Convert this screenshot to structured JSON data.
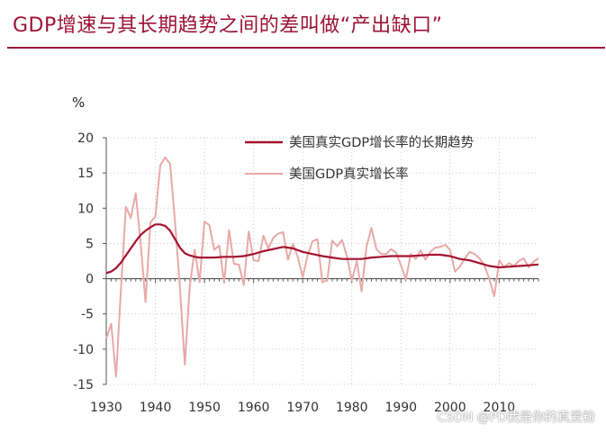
{
  "header": {
    "title": "GDP增速与其长期趋势之间的差叫做“产出缺口”"
  },
  "watermark": "CSDN @PD我是你的真爱粉",
  "chart_data": {
    "type": "line",
    "title": "GDP增速与其长期趋势之间的差叫做“产出缺口”",
    "ylabel": "%",
    "xlabel": "",
    "xlim": [
      1930,
      2018
    ],
    "ylim": [
      -15,
      20
    ],
    "xticks": [
      1930,
      1940,
      1950,
      1960,
      1970,
      1980,
      1990,
      2000,
      2010
    ],
    "yticks": [
      20,
      15,
      10,
      5,
      0,
      -5,
      -10,
      -15
    ],
    "grid": true,
    "legend_position": "top-right",
    "colors": {
      "trend": "#a3122f",
      "actual": "#e8a9a7",
      "axis": "#555555",
      "grid": "#bbbbbb"
    },
    "series": [
      {
        "name": "美国真实GDP增长率的长期趋势",
        "key": "trend",
        "x": [
          1930,
          1931,
          1932,
          1933,
          1934,
          1935,
          1936,
          1937,
          1938,
          1939,
          1940,
          1941,
          1942,
          1943,
          1944,
          1945,
          1946,
          1947,
          1948,
          1949,
          1950,
          1952,
          1954,
          1956,
          1958,
          1960,
          1962,
          1964,
          1966,
          1968,
          1970,
          1972,
          1974,
          1976,
          1978,
          1980,
          1982,
          1984,
          1986,
          1988,
          1990,
          1992,
          1994,
          1996,
          1998,
          2000,
          2002,
          2004,
          2006,
          2008,
          2010,
          2012,
          2014,
          2016,
          2018
        ],
        "values": [
          0.8,
          1.0,
          1.5,
          2.3,
          3.3,
          4.3,
          5.3,
          6.2,
          6.8,
          7.3,
          7.7,
          7.7,
          7.5,
          6.8,
          5.6,
          4.4,
          3.6,
          3.3,
          3.1,
          3.0,
          3.0,
          3.0,
          3.1,
          3.1,
          3.2,
          3.5,
          3.9,
          4.2,
          4.5,
          4.3,
          3.8,
          3.5,
          3.2,
          3.0,
          2.8,
          2.8,
          2.8,
          3.0,
          3.1,
          3.2,
          3.2,
          3.2,
          3.3,
          3.4,
          3.4,
          3.2,
          2.8,
          2.6,
          2.2,
          1.8,
          1.6,
          1.7,
          1.8,
          1.9,
          2.0
        ]
      },
      {
        "name": "美国GDP真实增长率",
        "key": "actual",
        "x": [
          1930,
          1931,
          1932,
          1933,
          1934,
          1935,
          1936,
          1937,
          1938,
          1939,
          1940,
          1941,
          1942,
          1943,
          1944,
          1945,
          1946,
          1947,
          1948,
          1949,
          1950,
          1951,
          1952,
          1953,
          1954,
          1955,
          1956,
          1957,
          1958,
          1959,
          1960,
          1961,
          1962,
          1963,
          1964,
          1965,
          1966,
          1967,
          1968,
          1969,
          1970,
          1971,
          1972,
          1973,
          1974,
          1975,
          1976,
          1977,
          1978,
          1979,
          1980,
          1981,
          1982,
          1983,
          1984,
          1985,
          1986,
          1987,
          1988,
          1989,
          1990,
          1991,
          1992,
          1993,
          1994,
          1995,
          1996,
          1997,
          1998,
          1999,
          2000,
          2001,
          2002,
          2003,
          2004,
          2005,
          2006,
          2007,
          2008,
          2009,
          2010,
          2011,
          2012,
          2013,
          2014,
          2015,
          2016,
          2017,
          2018
        ],
        "values": [
          -8.5,
          -6.4,
          -13.9,
          -1.3,
          10.2,
          8.6,
          12.1,
          5.1,
          -3.3,
          8.0,
          8.8,
          16.1,
          17.2,
          16.3,
          8.0,
          -1.2,
          -12.2,
          -1.1,
          4.1,
          -0.5,
          8.1,
          7.6,
          4.1,
          4.7,
          -0.6,
          6.9,
          2.1,
          2.0,
          -0.9,
          6.7,
          2.6,
          2.5,
          6.1,
          4.3,
          5.8,
          6.4,
          6.6,
          2.7,
          4.9,
          3.1,
          0.2,
          3.3,
          5.3,
          5.6,
          -0.5,
          -0.2,
          5.4,
          4.6,
          5.5,
          3.2,
          -0.3,
          2.5,
          -1.8,
          4.6,
          7.2,
          4.2,
          3.5,
          3.5,
          4.2,
          3.7,
          1.9,
          -0.1,
          3.5,
          2.8,
          4.0,
          2.7,
          3.8,
          4.4,
          4.5,
          4.8,
          4.1,
          1.0,
          1.7,
          2.9,
          3.8,
          3.5,
          2.9,
          1.9,
          -0.1,
          -2.5,
          2.6,
          1.6,
          2.2,
          1.8,
          2.5,
          2.9,
          1.6,
          2.4,
          2.9
        ]
      }
    ]
  }
}
